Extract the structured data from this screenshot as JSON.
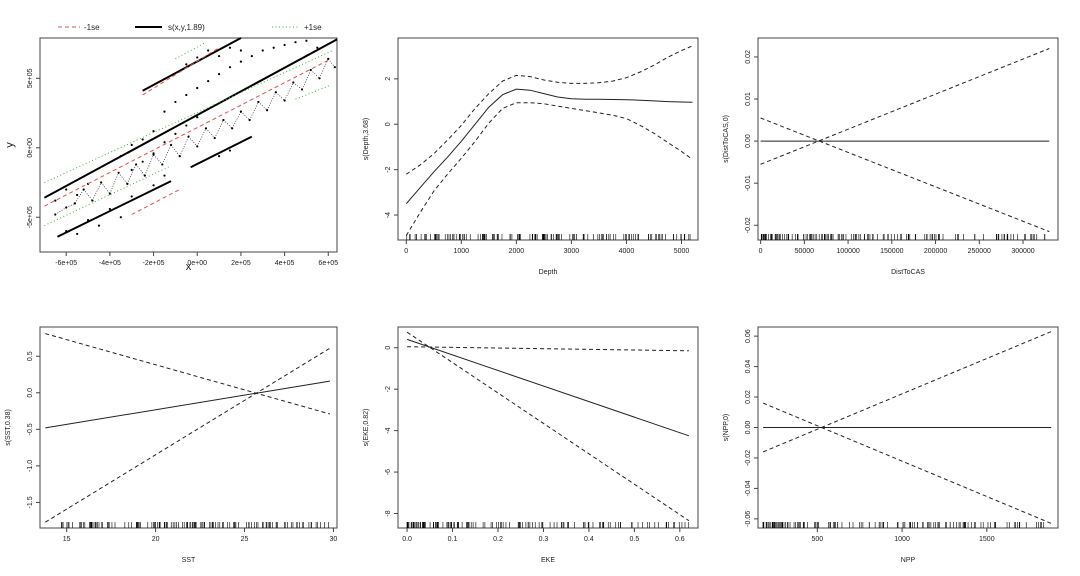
{
  "legend": [
    {
      "label": "-1se",
      "color": "#e05050",
      "dash": "dashed"
    },
    {
      "label": "s(x,y,1.89)",
      "color": "#000000",
      "dash": "solid"
    },
    {
      "label": "+1se",
      "color": "#40b040",
      "dash": "dotted"
    }
  ],
  "chart_data": [
    {
      "type": "contour",
      "xlabel": "x",
      "ylabel": "y",
      "xlim": [
        -720000,
        640000
      ],
      "ylim": [
        -750000,
        790000
      ],
      "xticks": [
        -600000,
        -400000,
        -200000,
        0,
        200000,
        400000,
        600000
      ],
      "xtick_labels": [
        "-6e+05",
        "-4e+05",
        "-2e+05",
        "0e+00",
        "2e+05",
        "4e+05",
        "6e+05"
      ],
      "yticks": [
        -500000,
        0,
        500000
      ],
      "ytick_labels": [
        "-5e+05",
        "0e+00",
        "5e+05"
      ],
      "contour_lines": [
        {
          "series": "s(x,y,1.89)",
          "x": [
            -700000,
            640000
          ],
          "y": [
            -360000,
            780000
          ]
        },
        {
          "series": "s(x,y,1.89)",
          "x": [
            -640000,
            -120000
          ],
          "y": [
            -640000,
            -240000
          ]
        },
        {
          "series": "s(x,y,1.89)",
          "x": [
            -30000,
            250000
          ],
          "y": [
            -140000,
            80000
          ]
        },
        {
          "series": "s(x,y,1.89)",
          "x": [
            -250000,
            200000
          ],
          "y": [
            410000,
            790000
          ]
        },
        {
          "series": "-1se",
          "x": [
            -700000,
            600000
          ],
          "y": [
            -420000,
            630000
          ]
        },
        {
          "series": "-1se",
          "x": [
            -250000,
            100000
          ],
          "y": [
            380000,
            720000
          ]
        },
        {
          "series": "-1se",
          "x": [
            -300000,
            -80000
          ],
          "y": [
            -480000,
            -300000
          ]
        },
        {
          "series": "+1se",
          "x": [
            -700000,
            620000
          ],
          "y": [
            -250000,
            700000
          ]
        },
        {
          "series": "+1se",
          "x": [
            -700000,
            -120000
          ],
          "y": [
            -560000,
            -130000
          ]
        },
        {
          "series": "+1se",
          "x": [
            -100000,
            40000
          ],
          "y": [
            640000,
            760000
          ]
        },
        {
          "series": "+1se",
          "x": [
            450000,
            610000
          ],
          "y": [
            350000,
            450000
          ]
        }
      ],
      "track_points": [
        [
          -650000,
          -480000
        ],
        [
          -600000,
          -430000
        ],
        [
          -560000,
          -400000
        ],
        [
          -520000,
          -300000
        ],
        [
          -480000,
          -380000
        ],
        [
          -440000,
          -250000
        ],
        [
          -400000,
          -330000
        ],
        [
          -360000,
          -180000
        ],
        [
          -320000,
          -260000
        ],
        [
          -280000,
          -120000
        ],
        [
          -240000,
          -200000
        ],
        [
          -200000,
          -50000
        ],
        [
          -160000,
          -120000
        ],
        [
          -120000,
          20000
        ],
        [
          -80000,
          -60000
        ],
        [
          -40000,
          80000
        ],
        [
          0,
          10000
        ],
        [
          40000,
          140000
        ],
        [
          80000,
          70000
        ],
        [
          120000,
          200000
        ],
        [
          160000,
          140000
        ],
        [
          200000,
          260000
        ],
        [
          240000,
          200000
        ],
        [
          280000,
          330000
        ],
        [
          320000,
          270000
        ],
        [
          360000,
          400000
        ],
        [
          400000,
          340000
        ],
        [
          440000,
          470000
        ],
        [
          480000,
          420000
        ],
        [
          520000,
          560000
        ],
        [
          560000,
          500000
        ],
        [
          600000,
          640000
        ],
        [
          630000,
          580000
        ],
        [
          -600000,
          -600000
        ],
        [
          -500000,
          -520000
        ],
        [
          -400000,
          -440000
        ],
        [
          -300000,
          -350000
        ],
        [
          -200000,
          -270000
        ],
        [
          -150000,
          -200000
        ],
        [
          -300000,
          -160000
        ],
        [
          -250000,
          -100000
        ],
        [
          -200000,
          -40000
        ],
        [
          -150000,
          40000
        ],
        [
          -100000,
          100000
        ],
        [
          -50000,
          160000
        ],
        [
          0,
          220000
        ],
        [
          -150000,
          260000
        ],
        [
          -100000,
          330000
        ],
        [
          -50000,
          380000
        ],
        [
          0,
          430000
        ],
        [
          50000,
          480000
        ],
        [
          100000,
          530000
        ],
        [
          150000,
          580000
        ],
        [
          200000,
          620000
        ],
        [
          250000,
          660000
        ],
        [
          300000,
          700000
        ],
        [
          350000,
          720000
        ],
        [
          400000,
          740000
        ],
        [
          450000,
          760000
        ],
        [
          500000,
          770000
        ],
        [
          550000,
          720000
        ],
        [
          100000,
          -60000
        ],
        [
          150000,
          -20000
        ],
        [
          -350000,
          -500000
        ],
        [
          -450000,
          -560000
        ],
        [
          -550000,
          -620000
        ],
        [
          -650000,
          -380000
        ],
        [
          -600000,
          -300000
        ],
        [
          -550000,
          -340000
        ],
        [
          -500000,
          -260000
        ],
        [
          -350000,
          -60000
        ],
        [
          -300000,
          20000
        ],
        [
          -250000,
          60000
        ],
        [
          -200000,
          120000
        ],
        [
          -50000,
          600000
        ],
        [
          0,
          650000
        ],
        [
          50000,
          700000
        ],
        [
          100000,
          660000
        ],
        [
          150000,
          720000
        ],
        [
          200000,
          700000
        ]
      ]
    },
    {
      "type": "line",
      "xlabel": "Depth",
      "ylabel": "s(Depth,3.68)",
      "xlim": [
        -150,
        5300
      ],
      "ylim": [
        -5.1,
        3.8
      ],
      "xticks": [
        0,
        1000,
        2000,
        3000,
        4000,
        5000
      ],
      "xtick_labels": [
        "0",
        "1000",
        "2000",
        "3000",
        "4000",
        "5000"
      ],
      "yticks": [
        -4,
        -2,
        0,
        2
      ],
      "ytick_labels": [
        "-4",
        "-2",
        "0",
        "2"
      ],
      "series": [
        {
          "role": "fit",
          "x": [
            0,
            250,
            500,
            750,
            1000,
            1250,
            1500,
            1750,
            2000,
            2250,
            2500,
            2750,
            3000,
            3250,
            3500,
            3750,
            4000,
            4250,
            4500,
            4750,
            5000,
            5200
          ],
          "y": [
            -3.5,
            -2.8,
            -2.1,
            -1.45,
            -0.75,
            0.0,
            0.75,
            1.3,
            1.55,
            1.5,
            1.35,
            1.2,
            1.12,
            1.1,
            1.1,
            1.09,
            1.08,
            1.06,
            1.03,
            1.0,
            0.98,
            0.97
          ]
        },
        {
          "role": "upper",
          "x": [
            0,
            250,
            500,
            750,
            1000,
            1250,
            1500,
            1750,
            2000,
            2250,
            2500,
            2750,
            3000,
            3250,
            3500,
            3750,
            4000,
            4250,
            4500,
            4750,
            5000,
            5200
          ],
          "y": [
            -2.2,
            -1.8,
            -1.3,
            -0.7,
            -0.05,
            0.7,
            1.35,
            1.9,
            2.15,
            2.1,
            1.95,
            1.85,
            1.8,
            1.8,
            1.83,
            1.9,
            2.05,
            2.3,
            2.6,
            2.95,
            3.25,
            3.45
          ]
        },
        {
          "role": "lower",
          "x": [
            0,
            250,
            500,
            750,
            1000,
            1250,
            1500,
            1750,
            2000,
            2250,
            2500,
            2750,
            3000,
            3250,
            3500,
            3750,
            4000,
            4250,
            4500,
            4750,
            5000,
            5200
          ],
          "y": [
            -4.9,
            -3.9,
            -2.95,
            -2.2,
            -1.5,
            -0.75,
            0.05,
            0.7,
            0.95,
            0.95,
            0.9,
            0.8,
            0.7,
            0.6,
            0.5,
            0.4,
            0.25,
            -0.05,
            -0.4,
            -0.8,
            -1.2,
            -1.55
          ]
        }
      ],
      "rug_range": [
        0,
        5200
      ]
    },
    {
      "type": "line",
      "xlabel": "DistToCAS",
      "ylabel": "s(DistToCAS,0)",
      "xlim": [
        -3000,
        340000
      ],
      "ylim": [
        -0.0235,
        0.0245
      ],
      "xticks": [
        0,
        50000,
        100000,
        150000,
        200000,
        250000,
        300000
      ],
      "xtick_labels": [
        "0",
        "50000",
        "100000",
        "150000",
        "200000",
        "250000",
        "300000"
      ],
      "yticks": [
        -0.02,
        -0.01,
        0.0,
        0.01,
        0.02
      ],
      "ytick_labels": [
        "-0.02",
        "-0.01",
        "0.00",
        "0.01",
        "0.02"
      ],
      "series": [
        {
          "role": "fit",
          "x": [
            0,
            330000
          ],
          "y": [
            0.0,
            0.0
          ]
        },
        {
          "role": "upper",
          "x": [
            0,
            330000
          ],
          "y": [
            -0.0055,
            0.022
          ]
        },
        {
          "role": "lower",
          "x": [
            0,
            330000
          ],
          "y": [
            0.0055,
            -0.0215
          ]
        }
      ],
      "rug_range": [
        0,
        330000
      ]
    },
    {
      "type": "line",
      "xlabel": "SST",
      "ylabel": "s(SST,0.38)",
      "xlim": [
        13.5,
        30.2
      ],
      "ylim": [
        -1.85,
        0.9
      ],
      "xticks": [
        15,
        20,
        25,
        30
      ],
      "xtick_labels": [
        "15",
        "20",
        "25",
        "30"
      ],
      "yticks": [
        -1.5,
        -1.0,
        -0.5,
        0.0,
        0.5
      ],
      "ytick_labels": [
        "-1.5",
        "-1.0",
        "-0.5",
        "0.0",
        "0.5"
      ],
      "series": [
        {
          "role": "fit",
          "x": [
            13.8,
            29.8
          ],
          "y": [
            -0.48,
            0.16
          ]
        },
        {
          "role": "upper",
          "x": [
            13.8,
            29.8
          ],
          "y": [
            0.81,
            -0.29
          ]
        },
        {
          "role": "lower",
          "x": [
            13.8,
            29.8
          ],
          "y": [
            -1.77,
            0.61
          ]
        }
      ],
      "rug_range": [
        14.7,
        29.8
      ]
    },
    {
      "type": "line",
      "xlabel": "EKE",
      "ylabel": "s(EKE,0.82)",
      "xlim": [
        -0.02,
        0.64
      ],
      "ylim": [
        -8.7,
        1.0
      ],
      "xticks": [
        0.0,
        0.1,
        0.2,
        0.3,
        0.4,
        0.5,
        0.6
      ],
      "xtick_labels": [
        "0.0",
        "0.1",
        "0.2",
        "0.3",
        "0.4",
        "0.5",
        "0.6"
      ],
      "yticks": [
        -8,
        -6,
        -4,
        -2,
        0
      ],
      "ytick_labels": [
        "-8",
        "-6",
        "-4",
        "-2",
        "0"
      ],
      "series": [
        {
          "role": "fit",
          "x": [
            0.0,
            0.62
          ],
          "y": [
            0.4,
            -4.25
          ]
        },
        {
          "role": "upper",
          "x": [
            0.0,
            0.62
          ],
          "y": [
            0.05,
            -0.15
          ]
        },
        {
          "role": "lower",
          "x": [
            0.0,
            0.62
          ],
          "y": [
            0.75,
            -8.35
          ]
        }
      ],
      "rug_range": [
        0.0,
        0.62
      ]
    },
    {
      "type": "line",
      "xlabel": "NPP",
      "ylabel": "s(NPP,0)",
      "xlim": [
        150,
        1920
      ],
      "ylim": [
        -0.066,
        0.066
      ],
      "xticks": [
        500,
        1000,
        1500
      ],
      "xtick_labels": [
        "500",
        "1000",
        "1500"
      ],
      "yticks": [
        -0.06,
        -0.04,
        -0.02,
        0.0,
        0.02,
        0.04,
        0.06
      ],
      "ytick_labels": [
        "-0.06",
        "-0.04",
        "-0.02",
        "0.00",
        "0.02",
        "0.04",
        "0.06"
      ],
      "series": [
        {
          "role": "fit",
          "x": [
            180,
            1880
          ],
          "y": [
            0.0,
            0.0
          ]
        },
        {
          "role": "upper",
          "x": [
            180,
            1880
          ],
          "y": [
            -0.016,
            0.063
          ]
        },
        {
          "role": "lower",
          "x": [
            180,
            1880
          ],
          "y": [
            0.016,
            -0.063
          ]
        }
      ],
      "rug_range": [
        180,
        1880
      ]
    }
  ]
}
